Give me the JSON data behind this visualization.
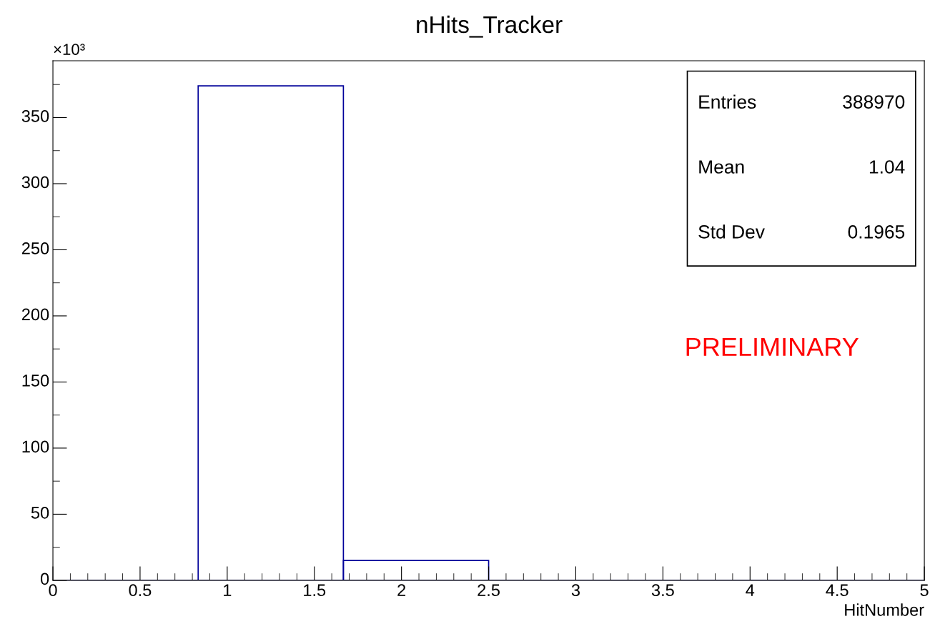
{
  "chart_data": {
    "type": "histogram",
    "title": "nHits_Tracker",
    "xlabel": "HitNumber",
    "bins": [
      0,
      0.8333,
      1.6667,
      2.5,
      3.3333,
      4.1667,
      5
    ],
    "values": [
      0,
      374,
      15,
      0,
      0,
      0
    ],
    "color": "#000099",
    "xlim": [
      0,
      5
    ],
    "xticks": [
      0,
      0.5,
      1,
      1.5,
      2,
      2.5,
      3,
      3.5,
      4,
      4.5,
      5
    ],
    "ylim": [
      0,
      393
    ],
    "yticks": [
      0,
      50,
      100,
      150,
      200,
      250,
      300,
      350
    ],
    "grid": false,
    "annotations": [
      "Entries",
      "388970",
      "Mean",
      "1.04",
      "Std Dev",
      "0.1965",
      "PRELIMINARY",
      "×10³"
    ]
  }
}
